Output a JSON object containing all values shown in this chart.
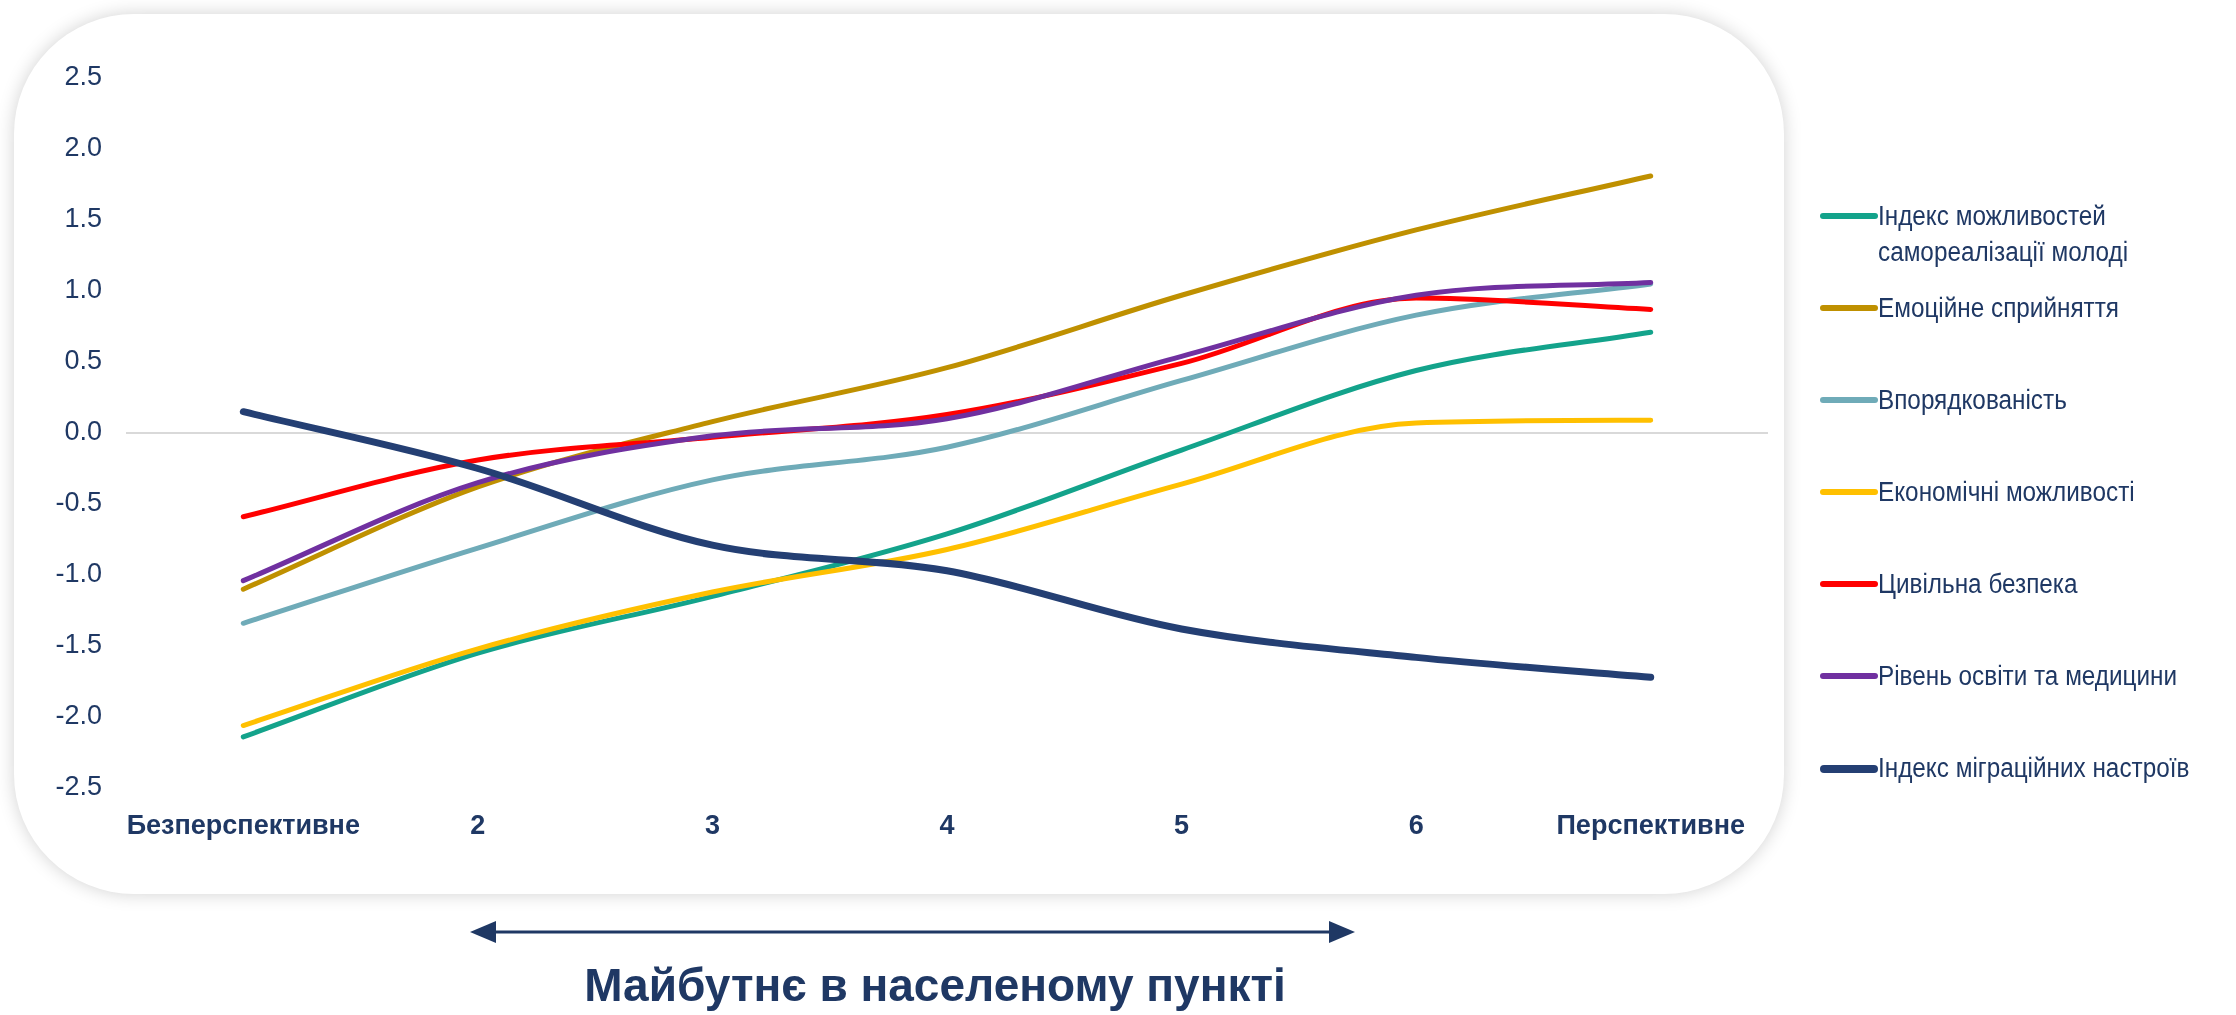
{
  "chart_data": {
    "type": "line",
    "xlabel": "Майбутнє в населеному пункті",
    "categories": [
      "Безперспективне",
      "2",
      "3",
      "4",
      "5",
      "6",
      "Перспективне"
    ],
    "series": [
      {
        "name": "Індекс можливостей самореалізації молоді",
        "color": "#13a38b",
        "values": [
          -2.14,
          -1.55,
          -1.15,
          -0.71,
          -0.12,
          0.44,
          0.71
        ]
      },
      {
        "name": "Емоційне сприйняття",
        "color": "#bf9000",
        "values": [
          -1.1,
          -0.38,
          0.08,
          0.46,
          0.97,
          1.43,
          1.81
        ]
      },
      {
        "name": "Впорядкованість",
        "color": "#6fabb8",
        "values": [
          -1.34,
          -0.81,
          -0.33,
          -0.1,
          0.37,
          0.83,
          1.05
        ]
      },
      {
        "name": "Економічні можливості",
        "color": "#ffc000",
        "values": [
          -2.06,
          -1.52,
          -1.12,
          -0.82,
          -0.36,
          0.07,
          0.09
        ]
      },
      {
        "name": "Цивільна безпека",
        "color": "#ff0000",
        "values": [
          -0.59,
          -0.19,
          -0.03,
          0.13,
          0.49,
          0.95,
          0.87
        ]
      },
      {
        "name": "Рівень освіти та медицини",
        "color": "#7030a0",
        "values": [
          -1.04,
          -0.35,
          -0.02,
          0.1,
          0.54,
          0.97,
          1.06
        ]
      },
      {
        "name": "Індекс міграційних настроїв",
        "color": "#243f73",
        "values": [
          0.15,
          -0.25,
          -0.79,
          -0.97,
          -1.38,
          -1.58,
          -1.72
        ]
      }
    ],
    "ylim": [
      -2.5,
      2.5
    ],
    "yticks": [
      {
        "value": -2.5,
        "label": "-2.5"
      },
      {
        "value": -2,
        "label": "-2.0"
      },
      {
        "value": -1.5,
        "label": "-1.5"
      },
      {
        "value": -1,
        "label": "-1.0"
      },
      {
        "value": -0.5,
        "label": "-0.5"
      },
      {
        "value": 0,
        "label": "0.0"
      },
      {
        "value": 0.5,
        "label": "0.5"
      },
      {
        "value": 1,
        "label": "1.0"
      },
      {
        "value": 1.5,
        "label": "1.5"
      },
      {
        "value": 2,
        "label": "2.0"
      },
      {
        "value": 2.5,
        "label": "2.5"
      }
    ],
    "ref_lines": [
      {
        "axis": "y",
        "value": 0,
        "color": "#d9d9d9"
      }
    ],
    "grid": false,
    "legend": "right",
    "marker": "none",
    "line_style": "solid"
  }
}
